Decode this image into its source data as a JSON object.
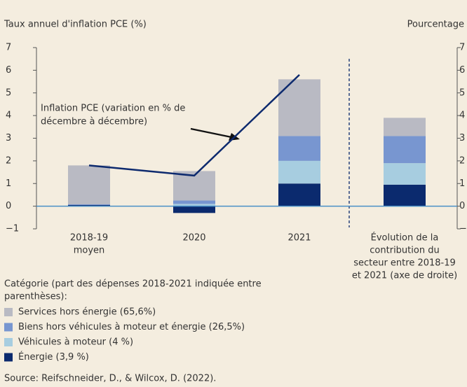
{
  "chart_data": {
    "type": "stacked-bar-line",
    "y_label": "Taux annuel d'inflation  PCE (%)",
    "y2_label": "Pourcentage",
    "categories": [
      [
        "2018-19",
        "moyen"
      ],
      [
        "2020"
      ],
      [
        "2021"
      ],
      [
        "Évolution de la",
        "contribution du",
        "secteur entre 2018-19",
        "et 2021 (axe de droite)"
      ]
    ],
    "series": [
      {
        "name": "Services hors énergie (65,6%)",
        "color": "#b9bac3",
        "values": [
          1.72,
          1.3,
          2.5,
          0.8
        ]
      },
      {
        "name": "Biens hors véhicules à moteur et énergie (26,5%)",
        "color": "#7896d0",
        "values": [
          0.03,
          0.15,
          1.1,
          1.2
        ]
      },
      {
        "name": "Véhicules à moteur (4 %)",
        "color": "#a7cde0",
        "values": [
          0.0,
          0.1,
          1.0,
          0.95
        ]
      },
      {
        "name": "Énergie (3,9 %)",
        "color": "#0b2a6e",
        "values": [
          0.05,
          -0.3,
          1.0,
          0.95
        ]
      }
    ],
    "line": {
      "color": "#0d2a6e",
      "values": [
        1.8,
        1.35,
        5.8,
        null
      ]
    },
    "annotation": [
      "Inflation PCE (variation en % de",
      "décembre à décembre)"
    ],
    "legend_title": [
      "Catégorie (part des dépenses 2018-2021 indiquée entre",
      "parenthèses):"
    ],
    "source": "Source:  Reifschneider, D., & Wilcox, D. (2022).",
    "ylim": [
      -1,
      7
    ],
    "yticks": [
      {
        "value": -1,
        "label": "−1"
      },
      0,
      1,
      2,
      3,
      4,
      5,
      6,
      7
    ],
    "y2lim": [
      -1,
      7
    ],
    "y2ticks": [
      {
        "value": -1,
        "label": "−1"
      },
      0,
      1,
      2,
      3,
      4,
      5,
      6,
      7
    ],
    "zero_line_color": "#4a8fc6"
  }
}
